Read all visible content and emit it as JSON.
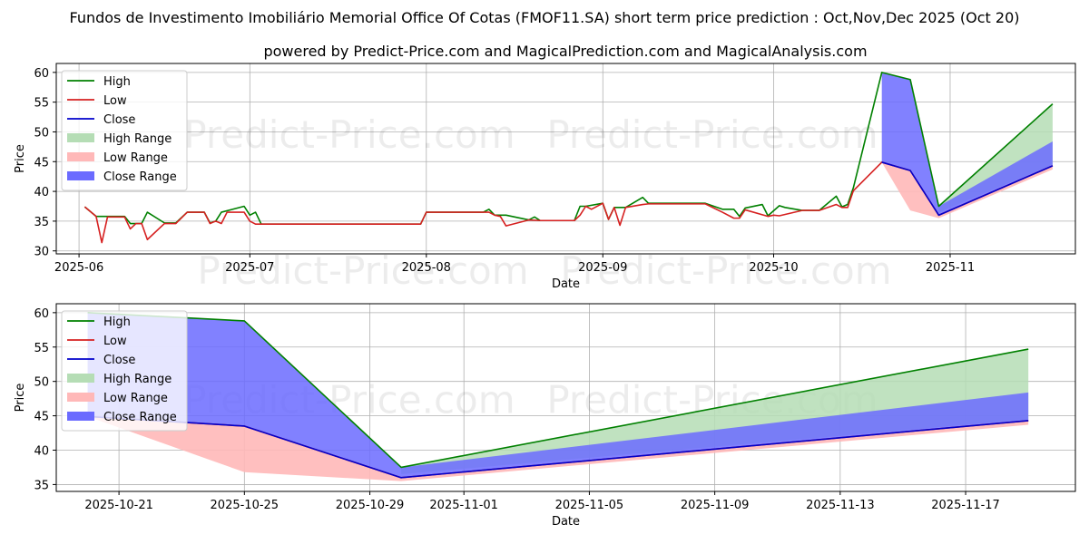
{
  "title": "Fundos de Investimento Imobiliário Memorial Office Of Cotas (FMOF11.SA) short term price prediction : Oct,Nov,Dec 2025 (Oct 20)",
  "subtitle": "powered by Predict-Price.com and MagicalPrediction.com and MagicalAnalysis.com",
  "watermark": "Predict-Price.com",
  "colors": {
    "high": "#008000",
    "low": "#d62020",
    "close": "#0000cc",
    "high_range": "#b5ddb5",
    "low_range": "#ffb8b8",
    "close_range": "#6b6bff"
  },
  "legend": [
    "High",
    "Low",
    "Close",
    "High Range",
    "Low Range",
    "Close Range"
  ],
  "chart_data": [
    {
      "type": "line",
      "id": "top",
      "xlabel": "Date",
      "ylabel": "Price",
      "xlim": [
        "2025-05-28",
        "2025-11-23"
      ],
      "ylim": [
        29.5,
        61.5
      ],
      "x_ticks": [
        "2025-06-01",
        "2025-07-01",
        "2025-08-01",
        "2025-09-01",
        "2025-10-01",
        "2025-11-01"
      ],
      "x_tick_labels": [
        "2025-06",
        "2025-07",
        "2025-08",
        "2025-09",
        "2025-10",
        "2025-11"
      ],
      "y_ticks": [
        30,
        35,
        40,
        45,
        50,
        55,
        60
      ],
      "history": {
        "high": [
          [
            "2025-06-02",
            37.4
          ],
          [
            "2025-06-04",
            35.8
          ],
          [
            "2025-06-06",
            35.8
          ],
          [
            "2025-06-09",
            35.8
          ],
          [
            "2025-06-10",
            34.6
          ],
          [
            "2025-06-11",
            34.6
          ],
          [
            "2025-06-12",
            34.6
          ],
          [
            "2025-06-13",
            36.5
          ],
          [
            "2025-06-16",
            34.7
          ],
          [
            "2025-06-17",
            34.7
          ],
          [
            "2025-06-18",
            34.7
          ],
          [
            "2025-06-20",
            36.5
          ],
          [
            "2025-06-23",
            36.5
          ],
          [
            "2025-06-24",
            34.7
          ],
          [
            "2025-06-25",
            35.0
          ],
          [
            "2025-06-26",
            36.5
          ],
          [
            "2025-06-30",
            37.5
          ],
          [
            "2025-07-01",
            36.0
          ],
          [
            "2025-07-02",
            36.5
          ],
          [
            "2025-07-03",
            34.5
          ],
          [
            "2025-07-31",
            34.5
          ],
          [
            "2025-08-01",
            36.5
          ],
          [
            "2025-08-11",
            36.5
          ],
          [
            "2025-08-12",
            37.0
          ],
          [
            "2025-08-13",
            36.0
          ],
          [
            "2025-08-15",
            36.0
          ],
          [
            "2025-08-19",
            35.2
          ],
          [
            "2025-08-20",
            35.7
          ],
          [
            "2025-08-21",
            35.1
          ],
          [
            "2025-08-27",
            35.1
          ],
          [
            "2025-08-28",
            37.5
          ],
          [
            "2025-08-29",
            37.5
          ],
          [
            "2025-09-01",
            38.0
          ],
          [
            "2025-09-02",
            35.3
          ],
          [
            "2025-09-03",
            37.3
          ],
          [
            "2025-09-05",
            37.3
          ],
          [
            "2025-09-08",
            39.0
          ],
          [
            "2025-09-09",
            38.0
          ],
          [
            "2025-09-11",
            38.0
          ],
          [
            "2025-09-19",
            38.0
          ],
          [
            "2025-09-22",
            37.0
          ],
          [
            "2025-09-24",
            37.0
          ],
          [
            "2025-09-25",
            35.8
          ],
          [
            "2025-09-26",
            37.2
          ],
          [
            "2025-09-29",
            37.8
          ],
          [
            "2025-09-30",
            35.9
          ],
          [
            "2025-10-02",
            37.6
          ],
          [
            "2025-10-03",
            37.3
          ],
          [
            "2025-10-06",
            36.8
          ],
          [
            "2025-10-08",
            36.8
          ],
          [
            "2025-10-09",
            36.8
          ],
          [
            "2025-10-12",
            39.2
          ],
          [
            "2025-10-13",
            37.4
          ],
          [
            "2025-10-14",
            37.8
          ],
          [
            "2025-10-15",
            40.6
          ],
          [
            "2025-10-20",
            60.0
          ],
          [
            "2025-10-25",
            58.8
          ],
          [
            "2025-10-30",
            37.5
          ],
          [
            "2025-11-19",
            54.7
          ]
        ],
        "low": [
          [
            "2025-06-02",
            37.4
          ],
          [
            "2025-06-04",
            35.8
          ],
          [
            "2025-06-05",
            31.4
          ],
          [
            "2025-06-06",
            35.7
          ],
          [
            "2025-06-09",
            35.7
          ],
          [
            "2025-06-10",
            33.7
          ],
          [
            "2025-06-11",
            34.6
          ],
          [
            "2025-06-12",
            34.6
          ],
          [
            "2025-06-13",
            31.9
          ],
          [
            "2025-06-16",
            34.6
          ],
          [
            "2025-06-18",
            34.6
          ],
          [
            "2025-06-20",
            36.5
          ],
          [
            "2025-06-23",
            36.5
          ],
          [
            "2025-06-24",
            34.6
          ],
          [
            "2025-06-25",
            35.0
          ],
          [
            "2025-06-26",
            34.6
          ],
          [
            "2025-06-27",
            36.5
          ],
          [
            "2025-06-30",
            36.5
          ],
          [
            "2025-07-01",
            35.0
          ],
          [
            "2025-07-02",
            34.5
          ],
          [
            "2025-07-31",
            34.5
          ],
          [
            "2025-08-01",
            36.5
          ],
          [
            "2025-08-12",
            36.5
          ],
          [
            "2025-08-13",
            36.0
          ],
          [
            "2025-08-14",
            35.8
          ],
          [
            "2025-08-15",
            34.2
          ],
          [
            "2025-08-19",
            35.2
          ],
          [
            "2025-08-21",
            35.1
          ],
          [
            "2025-08-27",
            35.1
          ],
          [
            "2025-08-28",
            36.0
          ],
          [
            "2025-08-29",
            37.5
          ],
          [
            "2025-08-30",
            37.0
          ],
          [
            "2025-09-01",
            38.0
          ],
          [
            "2025-09-02",
            35.3
          ],
          [
            "2025-09-03",
            37.3
          ],
          [
            "2025-09-04",
            34.3
          ],
          [
            "2025-09-05",
            37.3
          ],
          [
            "2025-09-08",
            37.8
          ],
          [
            "2025-09-09",
            37.9
          ],
          [
            "2025-09-19",
            37.9
          ],
          [
            "2025-09-22",
            36.5
          ],
          [
            "2025-09-24",
            35.5
          ],
          [
            "2025-09-25",
            35.5
          ],
          [
            "2025-09-26",
            36.9
          ],
          [
            "2025-09-30",
            35.8
          ],
          [
            "2025-10-01",
            36.0
          ],
          [
            "2025-10-02",
            35.9
          ],
          [
            "2025-10-06",
            36.8
          ],
          [
            "2025-10-09",
            36.8
          ],
          [
            "2025-10-12",
            37.8
          ],
          [
            "2025-10-13",
            37.3
          ],
          [
            "2025-10-14",
            37.3
          ],
          [
            "2025-10-15",
            40.1
          ],
          [
            "2025-10-20",
            44.9
          ],
          [
            "2025-10-25",
            43.5
          ],
          [
            "2025-10-30",
            36.0
          ],
          [
            "2025-11-19",
            44.3
          ]
        ],
        "close": [
          [
            "2025-10-20",
            44.9
          ],
          [
            "2025-10-25",
            43.5
          ],
          [
            "2025-10-30",
            36.0
          ],
          [
            "2025-11-19",
            44.3
          ]
        ]
      },
      "ranges": {
        "high_range": {
          "x": [
            "2025-10-30",
            "2025-11-19"
          ],
          "upper": [
            37.5,
            54.7
          ],
          "lower": [
            36.5,
            44.5
          ]
        },
        "low_range": {
          "x": [
            "2025-10-20",
            "2025-10-25",
            "2025-10-30",
            "2025-11-19"
          ],
          "upper": [
            44.9,
            43.5,
            36.0,
            44.3
          ],
          "lower": [
            44.9,
            36.8,
            35.5,
            43.7
          ]
        },
        "close_range": {
          "x": [
            "2025-10-20",
            "2025-10-25",
            "2025-10-30",
            "2025-11-19"
          ],
          "upper": [
            60.0,
            58.8,
            37.5,
            48.4
          ],
          "lower": [
            44.9,
            43.5,
            36.0,
            44.3
          ]
        }
      }
    },
    {
      "type": "line",
      "id": "bottom",
      "xlabel": "Date",
      "ylabel": "Price",
      "xlim": [
        "2025-10-19",
        "2025-11-20.5"
      ],
      "ylim": [
        34.0,
        61.3
      ],
      "x_ticks": [
        "2025-10-21",
        "2025-10-25",
        "2025-10-29",
        "2025-11-01",
        "2025-11-05",
        "2025-11-09",
        "2025-11-13",
        "2025-11-17"
      ],
      "x_tick_labels": [
        "2025-10-21",
        "2025-10-25",
        "2025-10-29",
        "2025-11-01",
        "2025-11-05",
        "2025-11-09",
        "2025-11-13",
        "2025-11-17"
      ],
      "y_ticks": [
        35,
        40,
        45,
        50,
        55,
        60
      ],
      "history": {
        "high": [
          [
            "2025-10-20",
            60.0
          ],
          [
            "2025-10-25",
            58.8
          ],
          [
            "2025-10-30",
            37.5
          ],
          [
            "2025-11-19",
            54.7
          ]
        ],
        "low": [
          [
            "2025-10-20",
            44.9
          ],
          [
            "2025-10-25",
            43.5
          ],
          [
            "2025-10-30",
            36.0
          ],
          [
            "2025-11-19",
            44.3
          ]
        ],
        "close": [
          [
            "2025-10-20",
            44.9
          ],
          [
            "2025-10-25",
            43.5
          ],
          [
            "2025-10-30",
            36.0
          ],
          [
            "2025-11-19",
            44.3
          ]
        ]
      },
      "ranges": {
        "high_range": {
          "x": [
            "2025-10-30",
            "2025-11-19"
          ],
          "upper": [
            37.5,
            54.7
          ],
          "lower": [
            36.5,
            44.5
          ]
        },
        "low_range": {
          "x": [
            "2025-10-20",
            "2025-10-25",
            "2025-10-30",
            "2025-11-19"
          ],
          "upper": [
            44.9,
            43.5,
            36.0,
            44.3
          ],
          "lower": [
            44.9,
            36.8,
            35.5,
            43.7
          ]
        },
        "close_range": {
          "x": [
            "2025-10-20",
            "2025-10-25",
            "2025-10-30",
            "2025-11-19"
          ],
          "upper": [
            60.0,
            58.8,
            37.5,
            48.4
          ],
          "lower": [
            44.9,
            43.5,
            36.0,
            44.3
          ]
        }
      }
    }
  ]
}
